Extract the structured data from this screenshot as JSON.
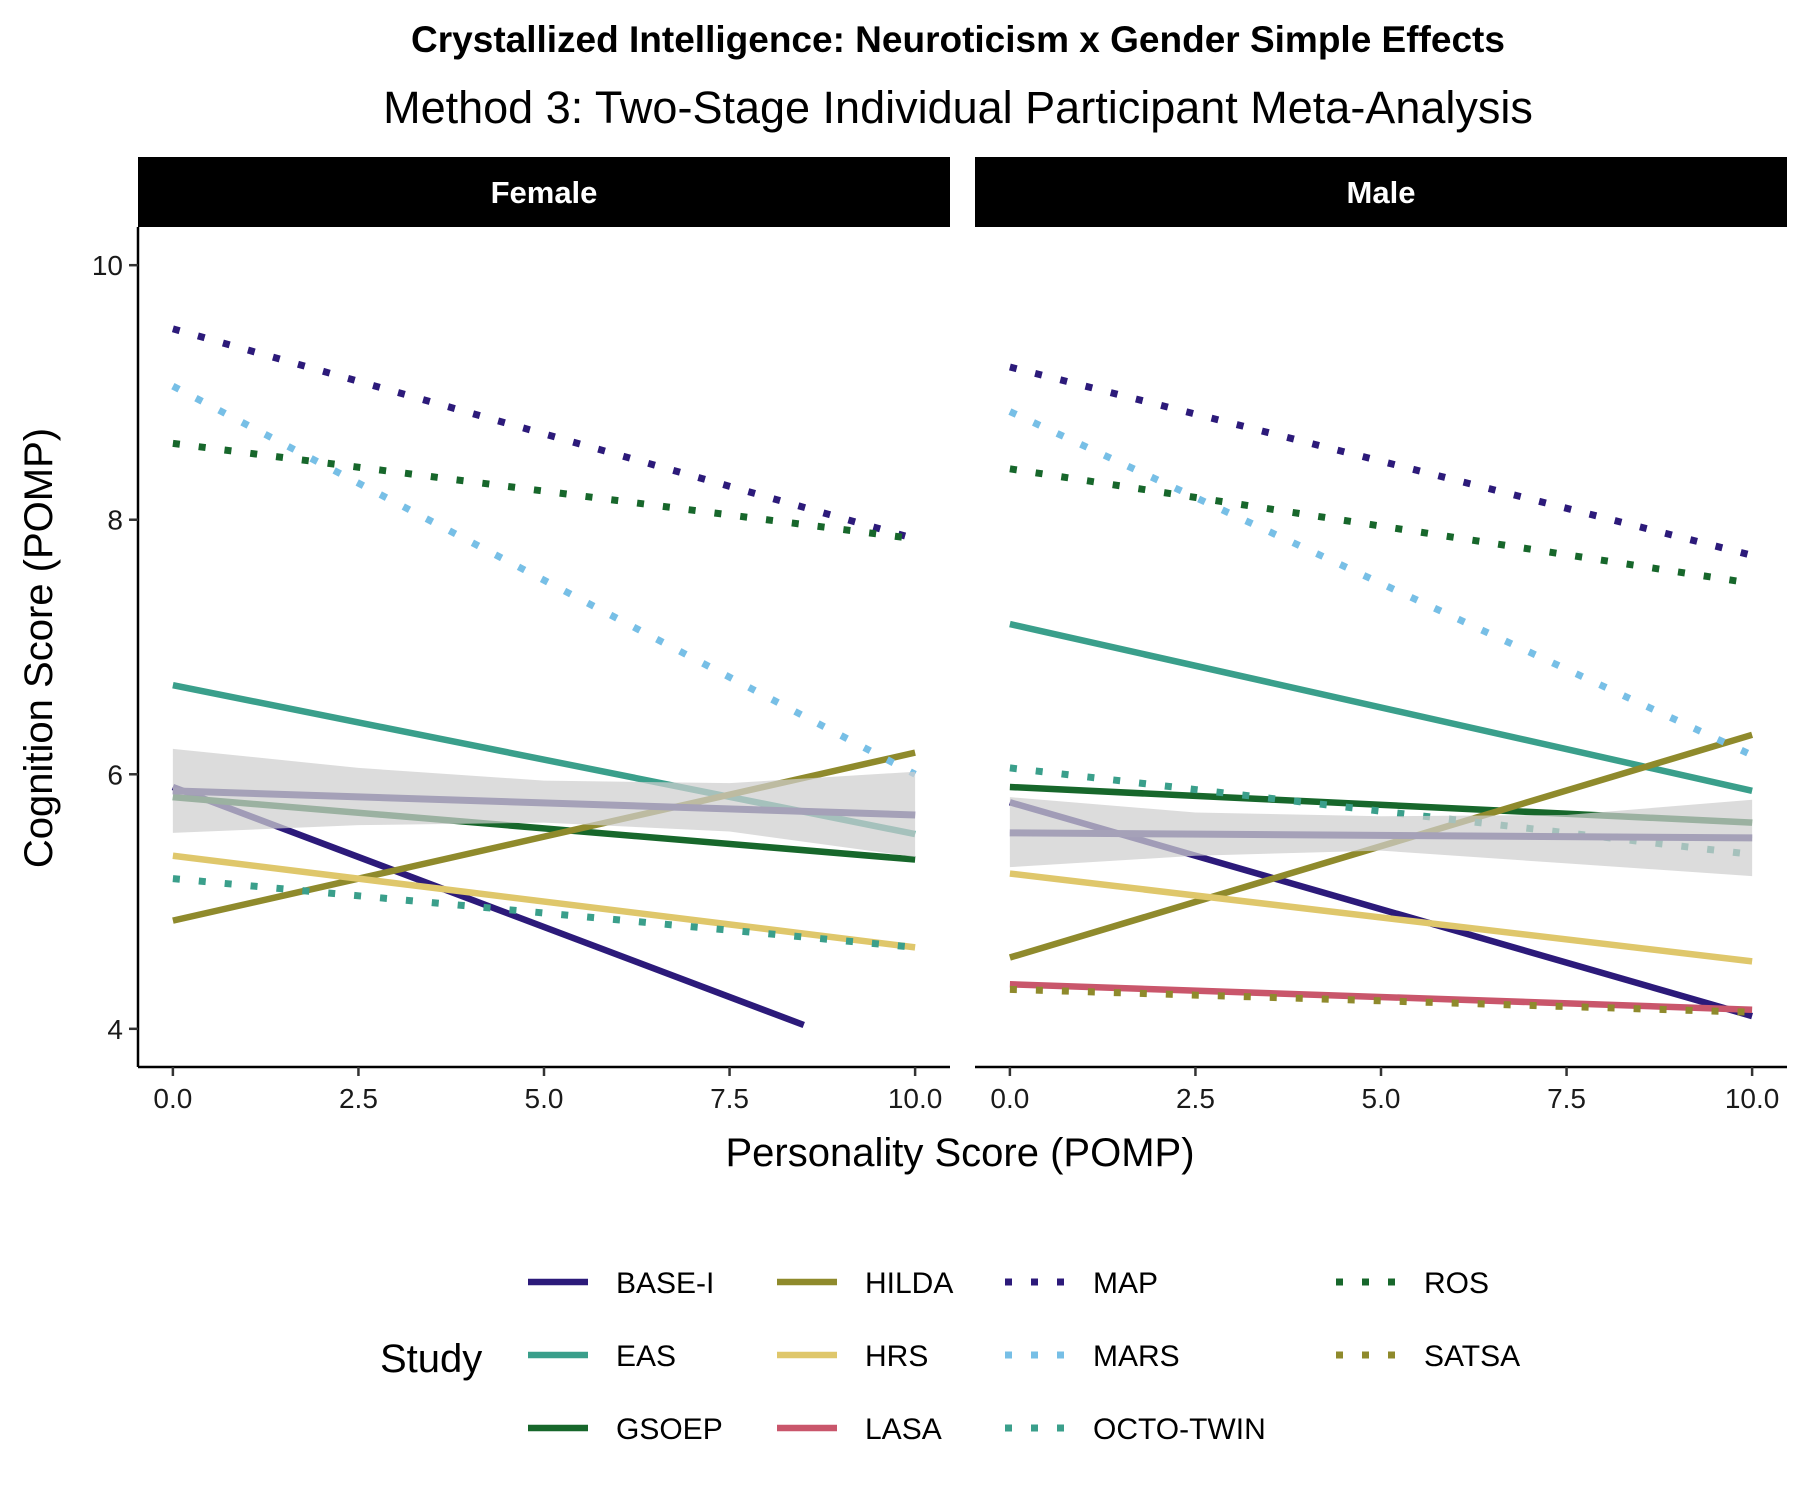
{
  "chart_data": {
    "type": "line",
    "title": "Crystallized Intelligence: Neuroticism x Gender Simple Effects",
    "subtitle": "Method 3: Two-Stage Individual Participant Meta-Analysis",
    "xlabel": "Personality Score (POMP)",
    "ylabel": "Cognition Score (POMP)",
    "xlim": [
      -0.47,
      10.47
    ],
    "ylim": [
      3.7,
      10.3
    ],
    "x_ticks": [
      0,
      2.5,
      5,
      7.5,
      10
    ],
    "x_tick_labels": [
      "0.0",
      "2.5",
      "5.0",
      "7.5",
      "10.0"
    ],
    "y_ticks": [
      4,
      6,
      8,
      10
    ],
    "y_tick_labels": [
      "4",
      "6",
      "8",
      "10"
    ],
    "grid": false,
    "legend": {
      "title": "Study",
      "position": "bottom",
      "entries": [
        {
          "name": "BASE-I",
          "color": "#2c1a7a",
          "dash": "solid"
        },
        {
          "name": "EAS",
          "color": "#3a9f8b",
          "dash": "solid"
        },
        {
          "name": "GSOEP",
          "color": "#17672b",
          "dash": "solid"
        },
        {
          "name": "HILDA",
          "color": "#8f8a2c",
          "dash": "solid"
        },
        {
          "name": "HRS",
          "color": "#dfc76b",
          "dash": "solid"
        },
        {
          "name": "LASA",
          "color": "#c9566b",
          "dash": "solid"
        },
        {
          "name": "MAP",
          "color": "#2c1a7a",
          "dash": "dotted"
        },
        {
          "name": "MARS",
          "color": "#77bfe6",
          "dash": "dotted"
        },
        {
          "name": "OCTO-TWIN",
          "color": "#3a9f8b",
          "dash": "dotted"
        },
        {
          "name": "ROS",
          "color": "#17672b",
          "dash": "dotted"
        },
        {
          "name": "SATSA",
          "color": "#8f8a2c",
          "dash": "dotted"
        }
      ]
    },
    "pooled_line_color": "#3b2d7d",
    "ribbon_color": "#cfcfcf",
    "panels": [
      {
        "label": "Female",
        "series": [
          {
            "name": "BASE-I",
            "x": [
              0,
              8.5
            ],
            "y": [
              5.9,
              4.03
            ]
          },
          {
            "name": "EAS",
            "x": [
              0,
              10
            ],
            "y": [
              6.7,
              5.53
            ]
          },
          {
            "name": "GSOEP",
            "x": [
              0,
              10
            ],
            "y": [
              5.82,
              5.33
            ]
          },
          {
            "name": "HILDA",
            "x": [
              0,
              10
            ],
            "y": [
              4.85,
              6.17
            ]
          },
          {
            "name": "HRS",
            "x": [
              0,
              10
            ],
            "y": [
              5.36,
              4.64
            ]
          },
          {
            "name": "MAP",
            "x": [
              0,
              10
            ],
            "y": [
              9.5,
              7.85
            ]
          },
          {
            "name": "MARS",
            "x": [
              0,
              10
            ],
            "y": [
              9.05,
              6.0
            ]
          },
          {
            "name": "OCTO-TWIN",
            "x": [
              0,
              10
            ],
            "y": [
              5.18,
              4.64
            ]
          },
          {
            "name": "ROS",
            "x": [
              0,
              10
            ],
            "y": [
              8.6,
              7.85
            ]
          }
        ],
        "pooled": {
          "x": [
            0,
            10
          ],
          "y": [
            5.87,
            5.68
          ]
        },
        "ribbon": {
          "x": [
            0,
            2.5,
            5,
            7.5,
            10
          ],
          "lower": [
            5.54,
            5.6,
            5.62,
            5.55,
            5.35
          ],
          "upper": [
            6.2,
            6.05,
            5.95,
            5.93,
            6.02
          ]
        }
      },
      {
        "label": "Male",
        "series": [
          {
            "name": "BASE-I",
            "x": [
              0,
              10
            ],
            "y": [
              5.78,
              4.1
            ]
          },
          {
            "name": "EAS",
            "x": [
              0,
              10
            ],
            "y": [
              7.18,
              5.87
            ]
          },
          {
            "name": "GSOEP",
            "x": [
              0,
              10
            ],
            "y": [
              5.9,
              5.62
            ]
          },
          {
            "name": "HILDA",
            "x": [
              0,
              10
            ],
            "y": [
              4.56,
              6.31
            ]
          },
          {
            "name": "HRS",
            "x": [
              0,
              10
            ],
            "y": [
              5.22,
              4.53
            ]
          },
          {
            "name": "LASA",
            "x": [
              0,
              10
            ],
            "y": [
              4.35,
              4.15
            ]
          },
          {
            "name": "MAP",
            "x": [
              0,
              10
            ],
            "y": [
              9.2,
              7.72
            ]
          },
          {
            "name": "MARS",
            "x": [
              0,
              10
            ],
            "y": [
              8.85,
              6.15
            ]
          },
          {
            "name": "OCTO-TWIN",
            "x": [
              0,
              10
            ],
            "y": [
              6.05,
              5.37
            ]
          },
          {
            "name": "ROS",
            "x": [
              0,
              10
            ],
            "y": [
              8.4,
              7.5
            ]
          },
          {
            "name": "SATSA",
            "x": [
              0,
              10
            ],
            "y": [
              4.31,
              4.13
            ]
          }
        ],
        "pooled": {
          "x": [
            0,
            10
          ],
          "y": [
            5.54,
            5.5
          ]
        },
        "ribbon": {
          "x": [
            0,
            2.5,
            5,
            7.5,
            10
          ],
          "lower": [
            5.27,
            5.36,
            5.4,
            5.3,
            5.2
          ],
          "upper": [
            5.82,
            5.7,
            5.67,
            5.68,
            5.8
          ]
        }
      }
    ]
  }
}
